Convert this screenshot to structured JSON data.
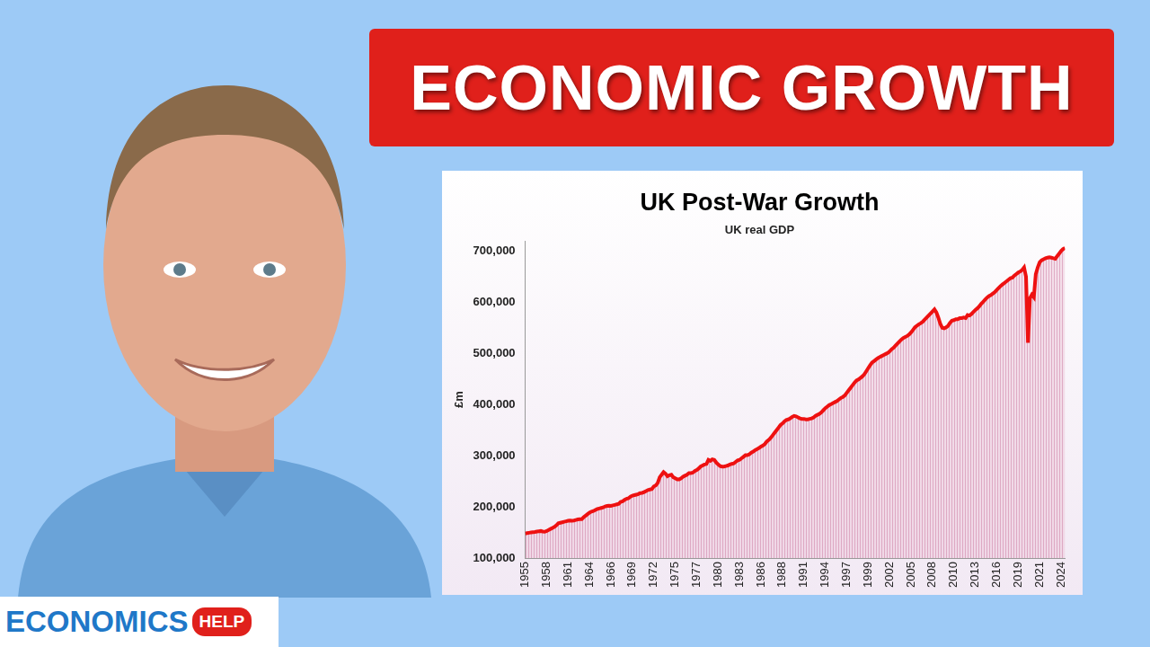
{
  "banner": {
    "text": "ECONOMIC GROWTH"
  },
  "logo": {
    "text": "ECONOMICS",
    "tag": "HELP"
  },
  "chart_data": {
    "type": "line",
    "title": "UK Post-War Growth",
    "subtitle": "UK real GDP",
    "y_label": "£m",
    "color": "#ee1111",
    "grid": false,
    "ylim": [
      100000,
      720000
    ],
    "yticks": [
      {
        "value": 100000,
        "label": "100,000"
      },
      {
        "value": 200000,
        "label": "200,000"
      },
      {
        "value": 300000,
        "label": "300,000"
      },
      {
        "value": 400000,
        "label": "400,000"
      },
      {
        "value": 500000,
        "label": "500,000"
      },
      {
        "value": 600000,
        "label": "600,000"
      },
      {
        "value": 700000,
        "label": "700,000"
      }
    ],
    "categories": [
      "1955",
      null,
      null,
      null,
      null,
      null,
      null,
      null,
      null,
      null,
      null,
      "1958",
      null,
      null,
      null,
      null,
      null,
      null,
      null,
      null,
      null,
      null,
      "1961",
      null,
      null,
      null,
      null,
      null,
      null,
      null,
      null,
      null,
      null,
      "1964",
      null,
      null,
      null,
      null,
      null,
      null,
      null,
      null,
      null,
      null,
      "1966",
      null,
      null,
      null,
      null,
      null,
      null,
      null,
      null,
      null,
      null,
      "1969",
      null,
      null,
      null,
      null,
      null,
      null,
      null,
      null,
      null,
      null,
      "1972",
      null,
      null,
      null,
      null,
      null,
      null,
      null,
      null,
      null,
      null,
      "1975",
      null,
      null,
      null,
      null,
      null,
      null,
      null,
      null,
      null,
      null,
      "1977",
      null,
      null,
      null,
      null,
      null,
      null,
      null,
      null,
      null,
      null,
      "1980",
      null,
      null,
      null,
      null,
      null,
      null,
      null,
      null,
      null,
      null,
      "1983",
      null,
      null,
      null,
      null,
      null,
      null,
      null,
      null,
      null,
      null,
      "1986",
      null,
      null,
      null,
      null,
      null,
      null,
      null,
      null,
      null,
      null,
      "1988",
      null,
      null,
      null,
      null,
      null,
      null,
      null,
      null,
      null,
      null,
      "1991",
      null,
      null,
      null,
      null,
      null,
      null,
      null,
      null,
      null,
      null,
      "1994",
      null,
      null,
      null,
      null,
      null,
      null,
      null,
      null,
      null,
      null,
      "1997",
      null,
      null,
      null,
      null,
      null,
      null,
      null,
      null,
      null,
      null,
      "1999",
      null,
      null,
      null,
      null,
      null,
      null,
      null,
      null,
      null,
      null,
      "2002",
      null,
      null,
      null,
      null,
      null,
      null,
      null,
      null,
      null,
      null,
      "2005",
      null,
      null,
      null,
      null,
      null,
      null,
      null,
      null,
      null,
      null,
      "2008",
      null,
      null,
      null,
      null,
      null,
      null,
      null,
      null,
      null,
      null,
      "2010",
      null,
      null,
      null,
      null,
      null,
      null,
      null,
      null,
      null,
      null,
      "2013",
      null,
      null,
      null,
      null,
      null,
      null,
      null,
      null,
      null,
      null,
      "2016",
      null,
      null,
      null,
      null,
      null,
      null,
      null,
      null,
      null,
      null,
      "2019",
      null,
      null,
      null,
      null,
      null,
      null,
      null,
      null,
      null,
      null,
      "2021",
      null,
      null,
      null,
      null,
      null,
      null,
      null,
      null,
      null,
      null,
      "2024",
      null,
      null
    ],
    "values": [
      148000,
      149000,
      149500,
      150000,
      150500,
      151000,
      152000,
      152500,
      153000,
      152000,
      151500,
      153000,
      155000,
      157000,
      159000,
      161000,
      164000,
      168000,
      169000,
      170000,
      171000,
      172000,
      173000,
      173500,
      173000,
      173500,
      174500,
      175500,
      176000,
      176000,
      180000,
      183000,
      186000,
      189000,
      191000,
      192000,
      194000,
      196000,
      197000,
      198000,
      199000,
      201000,
      202000,
      202500,
      202000,
      203000,
      204000,
      205000,
      206000,
      210000,
      211000,
      214000,
      216000,
      217000,
      220000,
      222000,
      223000,
      224000,
      225000,
      227000,
      227500,
      229000,
      231000,
      233000,
      234000,
      235000,
      240000,
      242000,
      247000,
      258000,
      263000,
      268000,
      265000,
      260000,
      262000,
      263000,
      258000,
      256000,
      254000,
      254000,
      256000,
      259000,
      261000,
      263000,
      266000,
      266000,
      267000,
      270000,
      272000,
      275000,
      279000,
      281000,
      283000,
      284000,
      292000,
      290000,
      293000,
      292000,
      287000,
      283000,
      280000,
      279000,
      279000,
      280000,
      281000,
      283000,
      284000,
      285000,
      288000,
      291000,
      292000,
      295000,
      298000,
      301000,
      301000,
      303000,
      306000,
      308000,
      311000,
      313000,
      315000,
      318000,
      320000,
      323000,
      328000,
      331000,
      335000,
      340000,
      345000,
      350000,
      355000,
      360000,
      363000,
      367000,
      370000,
      371000,
      373000,
      376000,
      378000,
      377000,
      375000,
      373000,
      372000,
      372000,
      371000,
      371000,
      372000,
      373000,
      375000,
      378000,
      380000,
      382000,
      385000,
      389000,
      393000,
      396000,
      399000,
      401000,
      403000,
      405000,
      407000,
      410000,
      413000,
      415000,
      418000,
      423000,
      428000,
      433000,
      438000,
      443000,
      447000,
      449000,
      452000,
      455000,
      459000,
      465000,
      471000,
      477000,
      482000,
      485000,
      488000,
      491000,
      493000,
      495000,
      497000,
      499000,
      501000,
      504000,
      508000,
      511000,
      515000,
      519000,
      523000,
      527000,
      530000,
      532000,
      534000,
      537000,
      541000,
      546000,
      551000,
      554000,
      557000,
      559000,
      562000,
      566000,
      570000,
      574000,
      578000,
      582000,
      586000,
      580000,
      570000,
      558000,
      550000,
      549000,
      551000,
      554000,
      560000,
      564000,
      565000,
      567000,
      567000,
      569000,
      569000,
      570000,
      569000,
      575000,
      574000,
      577000,
      581000,
      585000,
      588000,
      592000,
      597000,
      601000,
      605000,
      609000,
      612000,
      614000,
      617000,
      620000,
      624000,
      628000,
      632000,
      635000,
      638000,
      641000,
      644000,
      647000,
      648000,
      652000,
      655000,
      658000,
      660000,
      663000,
      668000,
      650000,
      521000,
      608000,
      615000,
      610000,
      655000,
      668000,
      678000,
      682000,
      684000,
      686000,
      687000,
      688000,
      687000,
      686000,
      685000,
      690000,
      695000,
      700000,
      704000,
      706000
    ]
  }
}
